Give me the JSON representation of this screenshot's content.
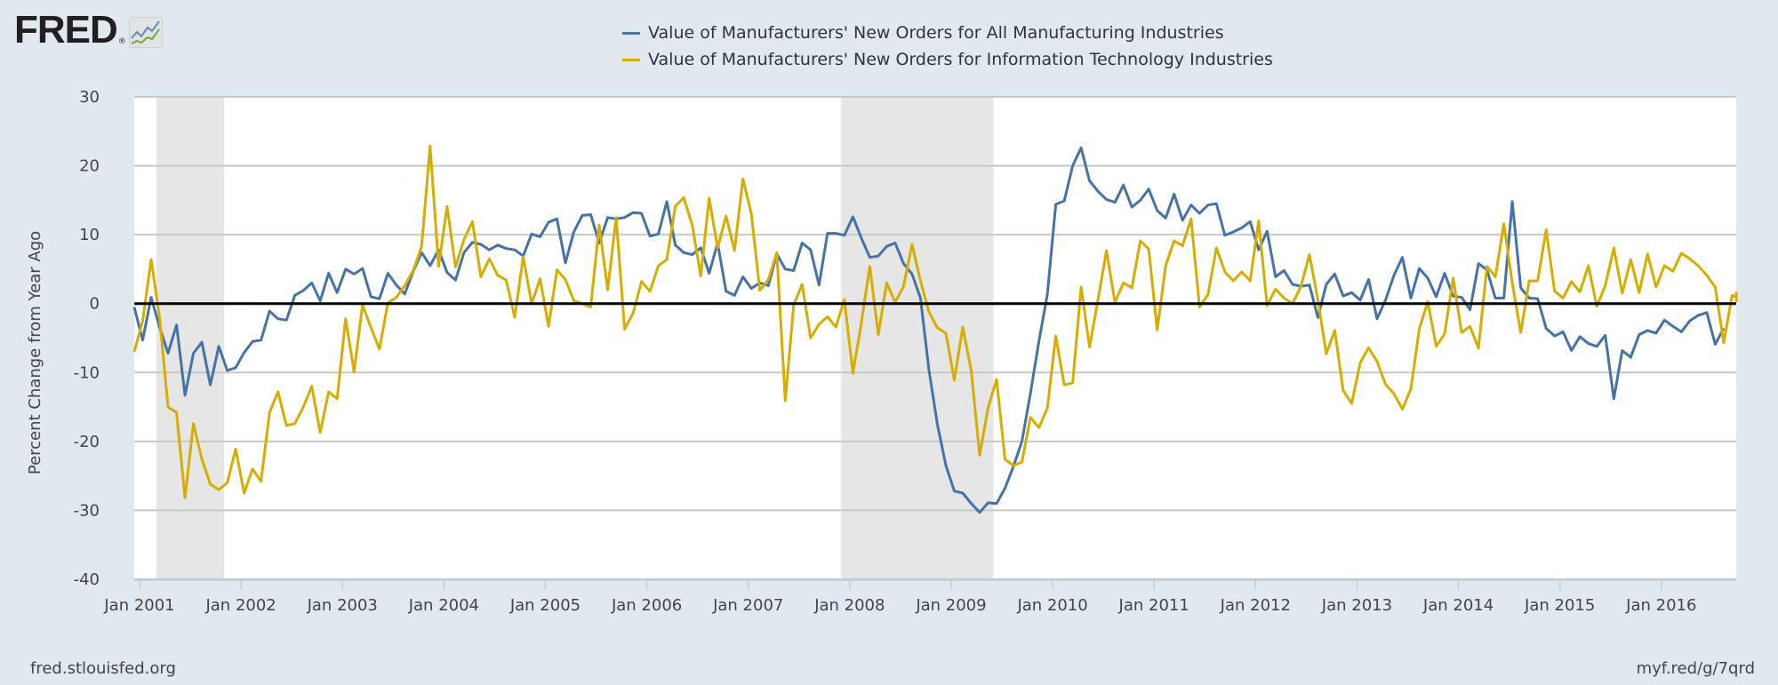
{
  "header": {
    "logo_text": "FRED",
    "logo_reg": "®",
    "logo_icon": "line-chart-icon"
  },
  "legend": [
    {
      "label": "Value of Manufacturers' New Orders for All Manufacturing Industries",
      "color": "#4572a7"
    },
    {
      "label": "Value of Manufacturers' New Orders for Information Technology Industries",
      "color": "#d6ad00"
    }
  ],
  "footer": {
    "source": "fred.stlouisfed.org",
    "short_link": "myf.red/g/7qrd"
  },
  "chart_data": {
    "type": "line",
    "title": "",
    "xlabel": "",
    "ylabel": "Percent Change from Year Ago",
    "ylim": [
      -40,
      30
    ],
    "yticks": [
      30,
      20,
      10,
      0,
      -10,
      -20,
      -30,
      -40
    ],
    "xticks": [
      "Jan 2001",
      "Jan 2002",
      "Jan 2003",
      "Jan 2004",
      "Jan 2005",
      "Jan 2006",
      "Jan 2007",
      "Jan 2008",
      "Jan 2009",
      "Jan 2010",
      "Jan 2011",
      "Jan 2012",
      "Jan 2013",
      "Jan 2014",
      "Jan 2015",
      "Jan 2016"
    ],
    "x_start": "2001-01",
    "x_end": "2016-07",
    "frequency": "monthly",
    "grid": true,
    "zero_line": true,
    "legend_position": "top-center",
    "recessions": [
      {
        "start": "2001-03",
        "end": "2001-11"
      },
      {
        "start": "2007-12",
        "end": "2009-06"
      }
    ],
    "recession_color": "#e6e6e6",
    "series": [
      {
        "name": "Value of Manufacturers' New Orders for All Manufacturing Industries",
        "color": "#4572a7",
        "values": [
          -0.5,
          -5.3,
          0.9,
          -3.4,
          -7.2,
          -3.1,
          -13.3,
          -7.2,
          -5.6,
          -11.8,
          -6.2,
          -9.7,
          -9.3,
          -7.1,
          -5.5,
          -5.3,
          -1.1,
          -2.2,
          -2.4,
          1.2,
          1.9,
          3.0,
          0.4,
          4.4,
          1.6,
          5.0,
          4.3,
          5.1,
          1.0,
          0.7,
          4.4,
          2.7,
          1.4,
          4.7,
          7.4,
          5.5,
          7.8,
          4.5,
          3.4,
          7.4,
          8.9,
          8.6,
          7.8,
          8.5,
          8.0,
          7.8,
          6.9,
          10.1,
          9.7,
          11.8,
          12.3,
          5.9,
          10.4,
          12.8,
          12.9,
          8.8,
          12.5,
          12.3,
          12.5,
          13.2,
          13.1,
          9.8,
          10.1,
          14.8,
          8.5,
          7.4,
          7.1,
          8.1,
          4.4,
          8.8,
          1.8,
          1.2,
          3.9,
          2.2,
          3.0,
          2.6,
          7.2,
          5.0,
          4.8,
          8.8,
          7.8,
          2.7,
          10.2,
          10.2,
          9.9,
          12.6,
          9.5,
          6.7,
          6.9,
          8.3,
          8.8,
          5.8,
          4.3,
          0.8,
          -9.6,
          -17.5,
          -23.5,
          -27.2,
          -27.5,
          -29.0,
          -30.3,
          -28.9,
          -29.0,
          -26.8,
          -23.6,
          -20.0,
          -13.0,
          -5.5,
          1.3,
          14.4,
          14.9,
          20.0,
          22.6,
          17.8,
          16.3,
          15.1,
          14.7,
          17.2,
          14.0,
          15.0,
          16.6,
          13.5,
          12.4,
          15.9,
          12.1,
          14.3,
          13.1,
          14.3,
          14.5,
          9.9,
          10.4,
          11.0,
          11.9,
          7.8,
          10.5,
          3.9,
          4.8,
          2.8,
          2.5,
          2.7,
          -2.0,
          2.8,
          4.3,
          1.1,
          1.6,
          0.5,
          3.5,
          -2.2,
          0.5,
          4.1,
          6.7,
          0.8,
          5.1,
          3.7,
          1.0,
          4.4,
          1.1,
          0.9,
          -0.9,
          5.8,
          4.9,
          0.8,
          0.8,
          14.8,
          2.3,
          0.8,
          0.7,
          -3.6,
          -4.7,
          -4.1,
          -6.8,
          -4.8,
          -5.8,
          -6.2,
          -4.6,
          -13.8,
          -6.8,
          -7.8,
          -4.5,
          -3.9,
          -4.3,
          -2.4,
          -3.3,
          -4.1,
          -2.5,
          -1.7,
          -1.3,
          -5.9,
          -3.6
        ]
      },
      {
        "name": "Value of Manufacturers' New Orders for Information Technology Industries",
        "color": "#d6ad00",
        "values": [
          -7.0,
          -2.5,
          6.4,
          -2.0,
          -15.0,
          -15.8,
          -28.2,
          -17.4,
          -22.6,
          -26.2,
          -27.0,
          -26.0,
          -21.1,
          -27.5,
          -24.0,
          -25.8,
          -15.8,
          -12.8,
          -17.7,
          -17.4,
          -15.0,
          -12.0,
          -18.7,
          -12.8,
          -13.8,
          -2.2,
          -9.9,
          -0.2,
          -3.5,
          -6.6,
          0.1,
          0.9,
          2.6,
          4.8,
          8.3,
          22.9,
          5.4,
          14.1,
          5.3,
          9.3,
          11.9,
          3.9,
          6.5,
          4.1,
          3.4,
          -2.0,
          6.8,
          0.0,
          3.6,
          -3.3,
          4.9,
          3.5,
          0.4,
          0.0,
          -0.5,
          11.4,
          2.0,
          12.5,
          -3.7,
          -1.4,
          3.2,
          1.8,
          5.5,
          6.4,
          14.1,
          15.4,
          11.4,
          4.0,
          15.3,
          8.1,
          12.7,
          7.7,
          18.1,
          13.0,
          1.9,
          3.5,
          7.4,
          -14.1,
          -0.2,
          2.8,
          -5.0,
          -3.0,
          -1.9,
          -3.4,
          0.6,
          -10.1,
          -2.8,
          5.4,
          -4.5,
          3.0,
          0.2,
          2.5,
          8.6,
          3.3,
          -1.2,
          -3.5,
          -4.3,
          -11.1,
          -3.4,
          -9.7,
          -22.0,
          -15.1,
          -11.0,
          -22.6,
          -23.5,
          -23.0,
          -16.5,
          -18.0,
          -15.2,
          -4.7,
          -11.8,
          -11.5,
          2.4,
          -6.3,
          0.6,
          7.7,
          0.2,
          3.0,
          2.3,
          9.1,
          7.9,
          -3.8,
          5.5,
          9.1,
          8.4,
          12.3,
          -0.5,
          1.3,
          8.1,
          4.6,
          3.3,
          4.6,
          3.3,
          12.0,
          -0.3,
          2.1,
          0.8,
          0.0,
          2.5,
          7.1,
          0.6,
          -7.3,
          -3.9,
          -12.6,
          -14.5,
          -8.6,
          -6.4,
          -8.4,
          -11.7,
          -13.1,
          -15.3,
          -12.4,
          -3.7,
          0.3,
          -6.2,
          -4.4,
          3.7,
          -4.2,
          -3.3,
          -6.5,
          5.4,
          3.9,
          11.6,
          3.0,
          -4.2,
          3.3,
          3.3,
          10.7,
          1.8,
          0.8,
          3.2,
          1.7,
          5.5,
          -0.4,
          2.6,
          8.1,
          1.5,
          6.4,
          1.6,
          7.2,
          2.4,
          5.5,
          4.7,
          7.3,
          6.5,
          5.5,
          4.1,
          2.4,
          -5.7,
          1.2,
          0.9,
          0.7,
          0.4,
          1.7
        ]
      }
    ]
  }
}
